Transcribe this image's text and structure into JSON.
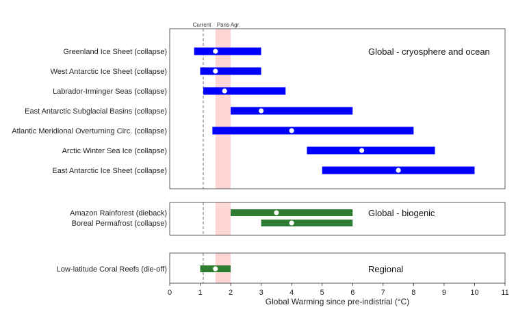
{
  "chart_data": {
    "type": "range",
    "xlabel": "Global Warming since pre-indistrial (°C)",
    "xlim": [
      0,
      11
    ],
    "xticks": [
      0,
      1,
      2,
      3,
      4,
      5,
      6,
      7,
      8,
      9,
      10,
      11
    ],
    "reference": {
      "current_label": "Current",
      "current_value": 1.1,
      "paris_label": "Paris Agr.",
      "paris_range": [
        1.5,
        2.0
      ]
    },
    "panels": [
      {
        "title": "Global - cryosphere and ocean",
        "color": "#0000ff",
        "items": [
          {
            "label": "Greenland Ice Sheet (collapse)",
            "min": 0.8,
            "max": 3.0,
            "central": 1.5
          },
          {
            "label": "West Antarctic Ice Sheet (collapse)",
            "min": 1.0,
            "max": 3.0,
            "central": 1.5
          },
          {
            "label": "Labrador-Irminger Seas (collapse)",
            "min": 1.1,
            "max": 3.8,
            "central": 1.8
          },
          {
            "label": "East Antarctic Subglacial Basins (collapse)",
            "min": 2.0,
            "max": 6.0,
            "central": 3.0
          },
          {
            "label": "Atlantic Meridional Overturning Circ. (collapse)",
            "min": 1.4,
            "max": 8.0,
            "central": 4.0
          },
          {
            "label": "Arctic Winter Sea Ice (collapse)",
            "min": 4.5,
            "max": 8.7,
            "central": 6.3
          },
          {
            "label": "East Antarctic Ice Sheet (collapse)",
            "min": 5.0,
            "max": 10.0,
            "central": 7.5
          }
        ]
      },
      {
        "title": "Global - biogenic",
        "color": "#2e7d32",
        "items": [
          {
            "label": "Amazon Rainforest (dieback)",
            "min": 2.0,
            "max": 6.0,
            "central": 3.5
          },
          {
            "label": "Boreal Permafrost (collapse)",
            "min": 3.0,
            "max": 6.0,
            "central": 4.0
          }
        ]
      },
      {
        "title": "Regional",
        "color": "#2e7d32",
        "items": [
          {
            "label": "Low-latitude Coral Reefs (die-off)",
            "min": 1.0,
            "max": 2.0,
            "central": 1.5
          }
        ]
      }
    ]
  }
}
